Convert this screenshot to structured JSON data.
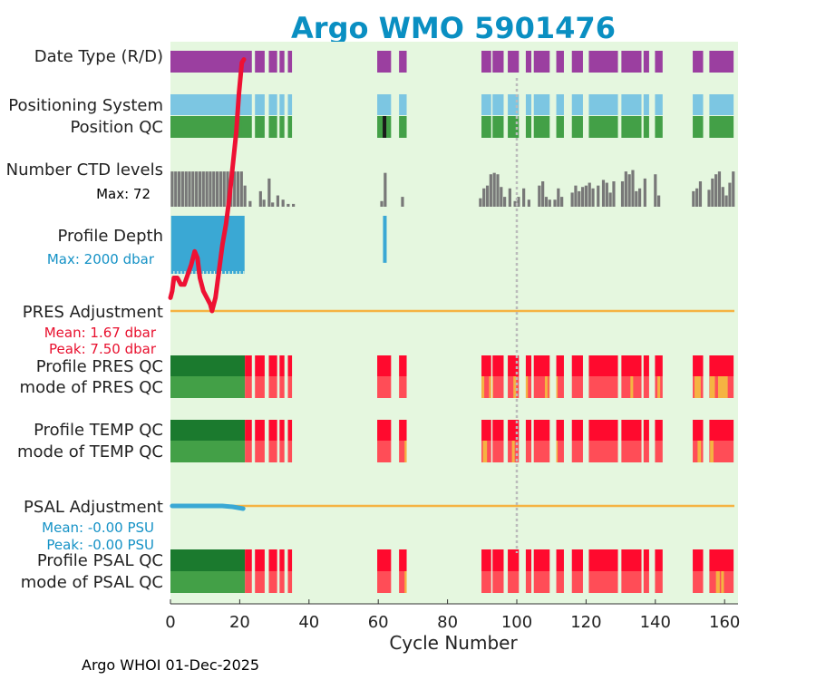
{
  "title": "Argo WMO 5901476",
  "footer": "Argo WHOI 01-Dec-2025",
  "colors": {
    "plot_bg": "#e5f7df",
    "purple": "#9b3fa0",
    "lightblue": "#7cc6e2",
    "green": "#43a047",
    "darkgreen": "#1b7a2e",
    "red": "#ff0a2e",
    "lightred": "#ff4d57",
    "orange": "#f5b342",
    "gray": "#787878",
    "blue": "#3aa8d4",
    "red_line": "#ee1133",
    "dotted": "#bbbbbb"
  },
  "labels": {
    "date_type": "Date Type (R/D)",
    "positioning_system": "Positioning System",
    "position_qc": "Position QC",
    "ctd_levels": "Number CTD levels",
    "ctd_max": "Max: 72",
    "profile_depth": "Profile Depth",
    "depth_max": "Max: 2000 dbar",
    "pres_adj": "PRES Adjustment",
    "pres_mean": "Mean: 1.67 dbar",
    "pres_peak": "Peak: 7.50 dbar",
    "profile_pres_qc": "Profile PRES QC",
    "mode_pres_qc": "mode of PRES QC",
    "profile_temp_qc": "Profile TEMP QC",
    "mode_temp_qc": "mode of TEMP QC",
    "psal_adj": "PSAL Adjustment",
    "psal_mean": "Mean: -0.00 PSU",
    "psal_peak": "Peak: -0.00 PSU",
    "profile_psal_qc": "Profile PSAL QC",
    "mode_psal_qc": "mode of PSAL QC"
  },
  "chart_data": {
    "type": "bar",
    "title": "Argo WMO 5901476",
    "xlabel": "Cycle Number",
    "xlim": [
      0,
      163
    ],
    "xticks": [
      0,
      20,
      40,
      60,
      80,
      100,
      120,
      140,
      160
    ],
    "xtick_labels": [
      "0",
      "20",
      "40",
      "60",
      "80",
      "100",
      "120",
      "140",
      "160"
    ],
    "reference_line_cycle": 100,
    "data_segments": [
      {
        "start": 0,
        "end": 21.5,
        "status": "early"
      },
      {
        "start": 21.5,
        "end": 36,
        "status": "late"
      },
      {
        "start": 59,
        "end": 69,
        "status": "late"
      },
      {
        "start": 89,
        "end": 163,
        "status": "late"
      }
    ],
    "late_bars": [
      {
        "c": 22,
        "w": 3.0
      },
      {
        "c": 25.8,
        "w": 2.8
      },
      {
        "c": 29.6,
        "w": 2.4
      },
      {
        "c": 32.2,
        "w": 1.4
      },
      {
        "c": 34.5,
        "w": 1.2
      },
      {
        "c": 61.7,
        "w": 4.0
      },
      {
        "c": 67.1,
        "w": 2.2
      },
      {
        "c": 91.2,
        "w": 2.8
      },
      {
        "c": 94.6,
        "w": 3.2
      },
      {
        "c": 99,
        "w": 3.2
      },
      {
        "c": 103.4,
        "w": 1.6
      },
      {
        "c": 107.2,
        "w": 4.6
      },
      {
        "c": 112.5,
        "w": 2.2
      },
      {
        "c": 117.5,
        "w": 3.2
      },
      {
        "c": 125,
        "w": 8.4
      },
      {
        "c": 133.1,
        "w": 5.8
      },
      {
        "c": 137.4,
        "w": 1.6
      },
      {
        "c": 141,
        "w": 2.2
      },
      {
        "c": 152.3,
        "w": 3.0
      },
      {
        "c": 159.1,
        "w": 7.0
      }
    ],
    "position_qc_flag_cycle": 61.8,
    "ctd_levels_max": 72,
    "ctd_levels": [
      [
        0.5,
        50
      ],
      [
        1.5,
        50
      ],
      [
        2.5,
        50
      ],
      [
        3.5,
        50
      ],
      [
        4.5,
        50
      ],
      [
        5.5,
        50
      ],
      [
        6.5,
        50
      ],
      [
        7.5,
        50
      ],
      [
        8.5,
        50
      ],
      [
        9.5,
        50
      ],
      [
        10.5,
        50
      ],
      [
        11.5,
        50
      ],
      [
        12.5,
        50
      ],
      [
        13.5,
        50
      ],
      [
        14.5,
        50
      ],
      [
        15.5,
        50
      ],
      [
        16.5,
        50
      ],
      [
        17.5,
        50
      ],
      [
        18.5,
        50
      ],
      [
        19.5,
        50
      ],
      [
        20.5,
        50
      ],
      [
        21.5,
        30
      ],
      [
        23,
        8
      ],
      [
        26,
        22
      ],
      [
        27,
        10
      ],
      [
        28.5,
        40
      ],
      [
        29.5,
        6
      ],
      [
        31,
        16
      ],
      [
        32.5,
        10
      ],
      [
        34,
        4
      ],
      [
        35.5,
        4
      ],
      [
        61,
        8
      ],
      [
        62,
        48
      ],
      [
        67,
        14
      ],
      [
        89.5,
        12
      ],
      [
        90.5,
        26
      ],
      [
        91.5,
        30
      ],
      [
        92.5,
        46
      ],
      [
        93.5,
        48
      ],
      [
        94.5,
        46
      ],
      [
        95.5,
        28
      ],
      [
        96.5,
        14
      ],
      [
        98,
        26
      ],
      [
        99.5,
        8
      ],
      [
        100.5,
        14
      ],
      [
        102,
        26
      ],
      [
        103.5,
        10
      ],
      [
        106.5,
        30
      ],
      [
        107.5,
        36
      ],
      [
        108.5,
        14
      ],
      [
        109.5,
        10
      ],
      [
        111,
        10
      ],
      [
        112,
        26
      ],
      [
        113,
        14
      ],
      [
        116,
        20
      ],
      [
        117,
        30
      ],
      [
        118,
        22
      ],
      [
        119,
        28
      ],
      [
        120,
        30
      ],
      [
        121,
        34
      ],
      [
        122,
        26
      ],
      [
        123.5,
        30
      ],
      [
        125,
        38
      ],
      [
        126,
        34
      ],
      [
        127,
        20
      ],
      [
        128,
        36
      ],
      [
        130.5,
        36
      ],
      [
        131.5,
        50
      ],
      [
        132.5,
        46
      ],
      [
        133.5,
        52
      ],
      [
        134.5,
        22
      ],
      [
        135.5,
        26
      ],
      [
        137,
        40
      ],
      [
        140,
        46
      ],
      [
        141,
        16
      ],
      [
        151,
        22
      ],
      [
        152,
        26
      ],
      [
        153,
        36
      ],
      [
        155.5,
        24
      ],
      [
        156.5,
        40
      ],
      [
        157.5,
        46
      ],
      [
        158.5,
        50
      ],
      [
        159.5,
        28
      ],
      [
        160.5,
        16
      ],
      [
        161.5,
        34
      ],
      [
        162.5,
        50
      ]
    ],
    "profile_depth": {
      "max_dbar": 2000,
      "segments": [
        {
          "start": 0.2,
          "end": 21.4,
          "dbar": 2000
        }
      ],
      "spikes": [
        {
          "cycle": 61.9,
          "dbar": 1800
        }
      ]
    },
    "pres_adjustment": {
      "mean": 1.67,
      "peak": 7.5,
      "unit": "dbar",
      "line_range": [
        0,
        163
      ],
      "curve": [
        [
          0,
          0.4
        ],
        [
          0.5,
          0.6
        ],
        [
          1,
          1.0
        ],
        [
          2,
          1.0
        ],
        [
          3,
          0.8
        ],
        [
          4,
          0.8
        ],
        [
          5,
          1.1
        ],
        [
          6,
          1.4
        ],
        [
          7,
          1.8
        ],
        [
          7.8,
          1.6
        ],
        [
          8.5,
          1.0
        ],
        [
          9.5,
          0.6
        ],
        [
          10.5,
          0.4
        ],
        [
          11.5,
          0.2
        ],
        [
          12,
          0.0
        ],
        [
          13,
          0.4
        ],
        [
          14,
          1.2
        ],
        [
          15,
          2.0
        ],
        [
          16,
          2.6
        ],
        [
          17,
          3.4
        ],
        [
          18,
          4.4
        ],
        [
          19,
          5.4
        ],
        [
          19.8,
          6.6
        ],
        [
          20.6,
          7.5
        ],
        [
          21.2,
          7.6
        ]
      ]
    },
    "psal_adjustment": {
      "mean": -0.0,
      "peak": -0.0,
      "unit": "PSU",
      "line_range": [
        0,
        163
      ],
      "curve": [
        [
          0.5,
          0
        ],
        [
          15,
          0
        ],
        [
          18,
          -0.05
        ],
        [
          21,
          -0.15
        ]
      ]
    },
    "qc_rows": [
      {
        "name": "pres_profile",
        "segments": [
          [
            21.5,
            163,
            "red"
          ]
        ]
      },
      {
        "name": "pres_mode",
        "segments": [
          [
            21.5,
            163,
            "lightred"
          ],
          [
            88.8,
            90.6,
            "orange"
          ],
          [
            92,
            93.2,
            "orange"
          ],
          [
            99,
            99.8,
            "orange"
          ],
          [
            101.2,
            102.2,
            "orange"
          ],
          [
            102.4,
            103.2,
            "orange"
          ],
          [
            108.1,
            108.9,
            "orange"
          ],
          [
            109.3,
            110.3,
            "orange"
          ],
          [
            111,
            111.8,
            "orange"
          ],
          [
            132.8,
            133.6,
            "orange"
          ],
          [
            140.6,
            141.4,
            "orange"
          ],
          [
            151.3,
            153.1,
            "orange"
          ],
          [
            155.7,
            157.2,
            "orange"
          ],
          [
            158.1,
            160.9,
            "orange"
          ]
        ]
      },
      {
        "name": "temp_profile",
        "segments": [
          [
            21.5,
            163,
            "red"
          ]
        ]
      },
      {
        "name": "temp_mode",
        "segments": [
          [
            21.5,
            163,
            "lightred"
          ],
          [
            67.6,
            68.4,
            "orange"
          ],
          [
            90.2,
            91.4,
            "orange"
          ],
          [
            98.6,
            99.4,
            "orange"
          ],
          [
            111,
            111.8,
            "orange"
          ],
          [
            152.2,
            153.2,
            "orange"
          ],
          [
            155.8,
            156.8,
            "orange"
          ]
        ]
      },
      {
        "name": "psal_profile",
        "segments": [
          [
            21.5,
            163,
            "red"
          ]
        ]
      },
      {
        "name": "psal_mode",
        "segments": [
          [
            21.5,
            163,
            "lightred"
          ],
          [
            67.6,
            68.4,
            "orange"
          ],
          [
            157.5,
            158.6,
            "orange"
          ],
          [
            159,
            159.8,
            "orange"
          ]
        ]
      }
    ]
  }
}
